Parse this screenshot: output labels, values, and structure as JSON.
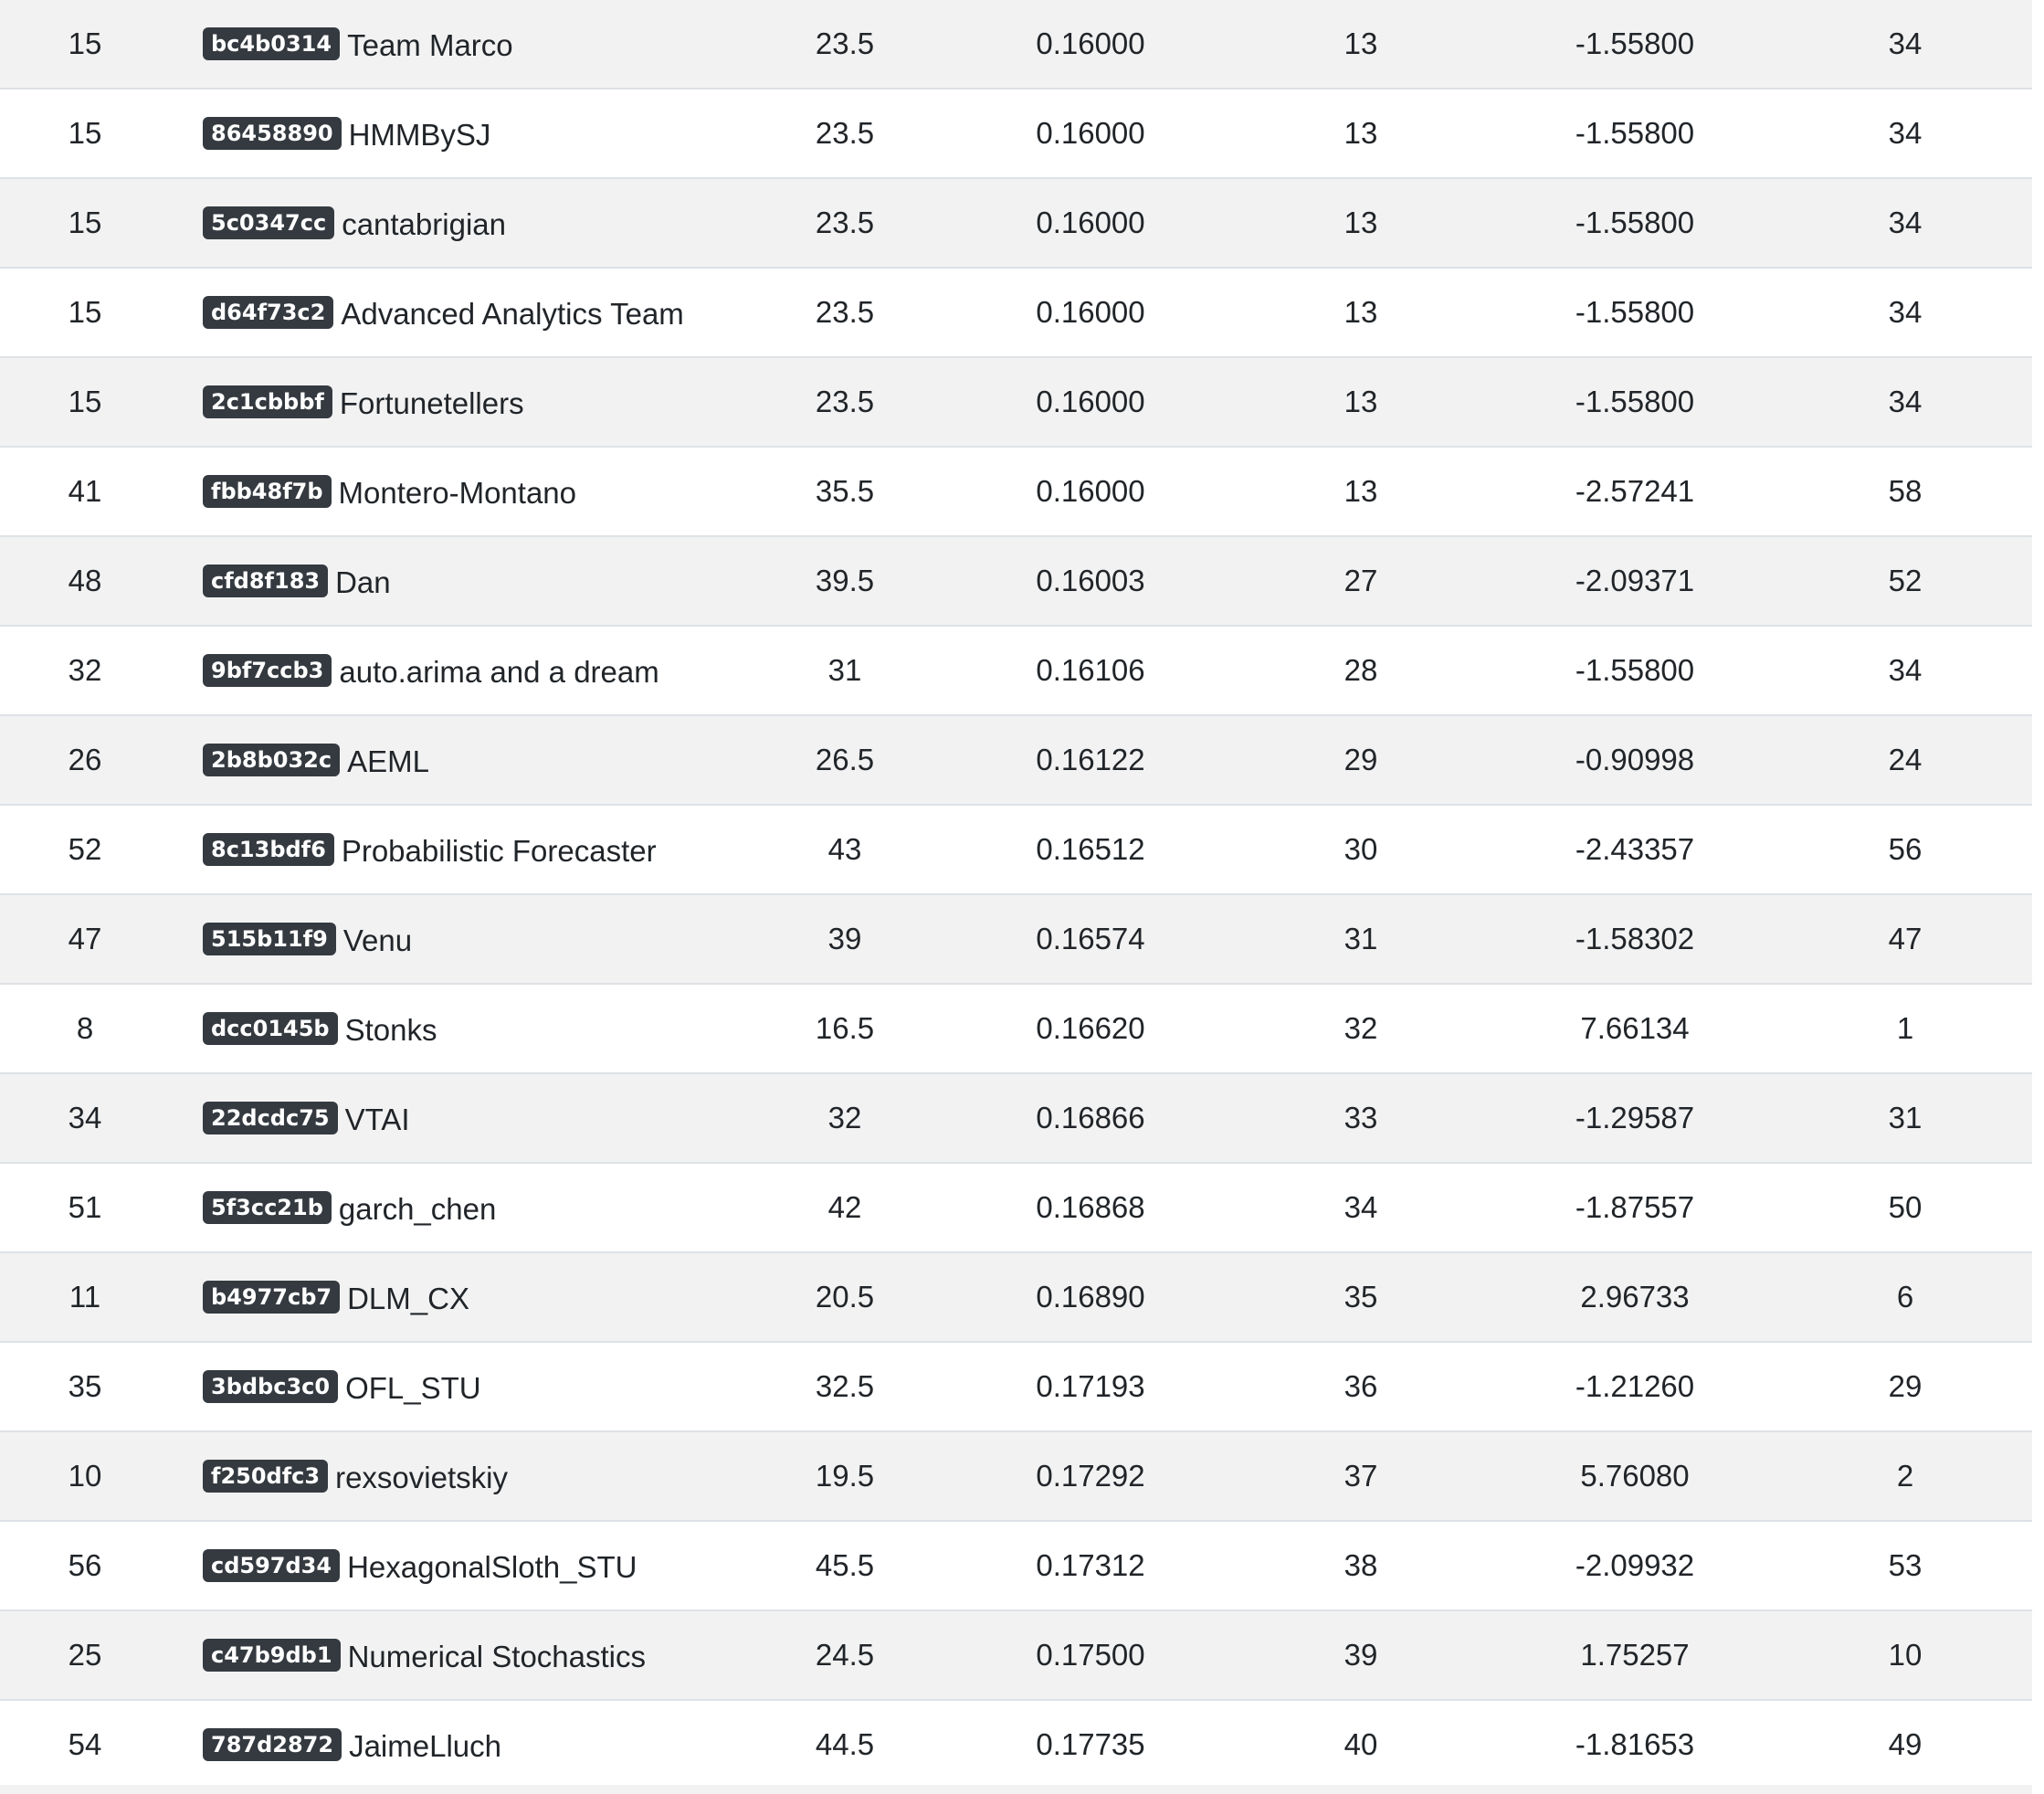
{
  "rows": [
    {
      "rank": "15",
      "id": "bc4b0314",
      "team": "Team Marco",
      "avg_rank": "23.5",
      "rps": "0.16000",
      "rps_rank": "13",
      "ir": "-1.55800",
      "ir_rank": "34"
    },
    {
      "rank": "15",
      "id": "86458890",
      "team": "HMMBySJ",
      "avg_rank": "23.5",
      "rps": "0.16000",
      "rps_rank": "13",
      "ir": "-1.55800",
      "ir_rank": "34"
    },
    {
      "rank": "15",
      "id": "5c0347cc",
      "team": "cantabrigian",
      "avg_rank": "23.5",
      "rps": "0.16000",
      "rps_rank": "13",
      "ir": "-1.55800",
      "ir_rank": "34"
    },
    {
      "rank": "15",
      "id": "d64f73c2",
      "team": "Advanced Analytics Team",
      "avg_rank": "23.5",
      "rps": "0.16000",
      "rps_rank": "13",
      "ir": "-1.55800",
      "ir_rank": "34"
    },
    {
      "rank": "15",
      "id": "2c1cbbbf",
      "team": "Fortunetellers",
      "avg_rank": "23.5",
      "rps": "0.16000",
      "rps_rank": "13",
      "ir": "-1.55800",
      "ir_rank": "34"
    },
    {
      "rank": "41",
      "id": "fbb48f7b",
      "team": "Montero-Montano",
      "avg_rank": "35.5",
      "rps": "0.16000",
      "rps_rank": "13",
      "ir": "-2.57241",
      "ir_rank": "58"
    },
    {
      "rank": "48",
      "id": "cfd8f183",
      "team": "Dan",
      "avg_rank": "39.5",
      "rps": "0.16003",
      "rps_rank": "27",
      "ir": "-2.09371",
      "ir_rank": "52"
    },
    {
      "rank": "32",
      "id": "9bf7ccb3",
      "team": "auto.arima and a dream",
      "avg_rank": "31",
      "rps": "0.16106",
      "rps_rank": "28",
      "ir": "-1.55800",
      "ir_rank": "34"
    },
    {
      "rank": "26",
      "id": "2b8b032c",
      "team": "AEML",
      "avg_rank": "26.5",
      "rps": "0.16122",
      "rps_rank": "29",
      "ir": "-0.90998",
      "ir_rank": "24"
    },
    {
      "rank": "52",
      "id": "8c13bdf6",
      "team": "Probabilistic Forecaster",
      "avg_rank": "43",
      "rps": "0.16512",
      "rps_rank": "30",
      "ir": "-2.43357",
      "ir_rank": "56"
    },
    {
      "rank": "47",
      "id": "515b11f9",
      "team": "Venu",
      "avg_rank": "39",
      "rps": "0.16574",
      "rps_rank": "31",
      "ir": "-1.58302",
      "ir_rank": "47"
    },
    {
      "rank": "8",
      "id": "dcc0145b",
      "team": "Stonks",
      "avg_rank": "16.5",
      "rps": "0.16620",
      "rps_rank": "32",
      "ir": "7.66134",
      "ir_rank": "1"
    },
    {
      "rank": "34",
      "id": "22dcdc75",
      "team": "VTAI",
      "avg_rank": "32",
      "rps": "0.16866",
      "rps_rank": "33",
      "ir": "-1.29587",
      "ir_rank": "31"
    },
    {
      "rank": "51",
      "id": "5f3cc21b",
      "team": "garch_chen",
      "avg_rank": "42",
      "rps": "0.16868",
      "rps_rank": "34",
      "ir": "-1.87557",
      "ir_rank": "50"
    },
    {
      "rank": "11",
      "id": "b4977cb7",
      "team": "DLM_CX",
      "avg_rank": "20.5",
      "rps": "0.16890",
      "rps_rank": "35",
      "ir": "2.96733",
      "ir_rank": "6"
    },
    {
      "rank": "35",
      "id": "3bdbc3c0",
      "team": "OFL_STU",
      "avg_rank": "32.5",
      "rps": "0.17193",
      "rps_rank": "36",
      "ir": "-1.21260",
      "ir_rank": "29"
    },
    {
      "rank": "10",
      "id": "f250dfc3",
      "team": "rexsovietskiy",
      "avg_rank": "19.5",
      "rps": "0.17292",
      "rps_rank": "37",
      "ir": "5.76080",
      "ir_rank": "2"
    },
    {
      "rank": "56",
      "id": "cd597d34",
      "team": "HexagonalSloth_STU",
      "avg_rank": "45.5",
      "rps": "0.17312",
      "rps_rank": "38",
      "ir": "-2.09932",
      "ir_rank": "53"
    },
    {
      "rank": "25",
      "id": "c47b9db1",
      "team": "Numerical Stochastics",
      "avg_rank": "24.5",
      "rps": "0.17500",
      "rps_rank": "39",
      "ir": "1.75257",
      "ir_rank": "10"
    },
    {
      "rank": "54",
      "id": "787d2872",
      "team": "JaimeLluch",
      "avg_rank": "44.5",
      "rps": "0.17735",
      "rps_rank": "40",
      "ir": "-1.81653",
      "ir_rank": "49"
    }
  ]
}
